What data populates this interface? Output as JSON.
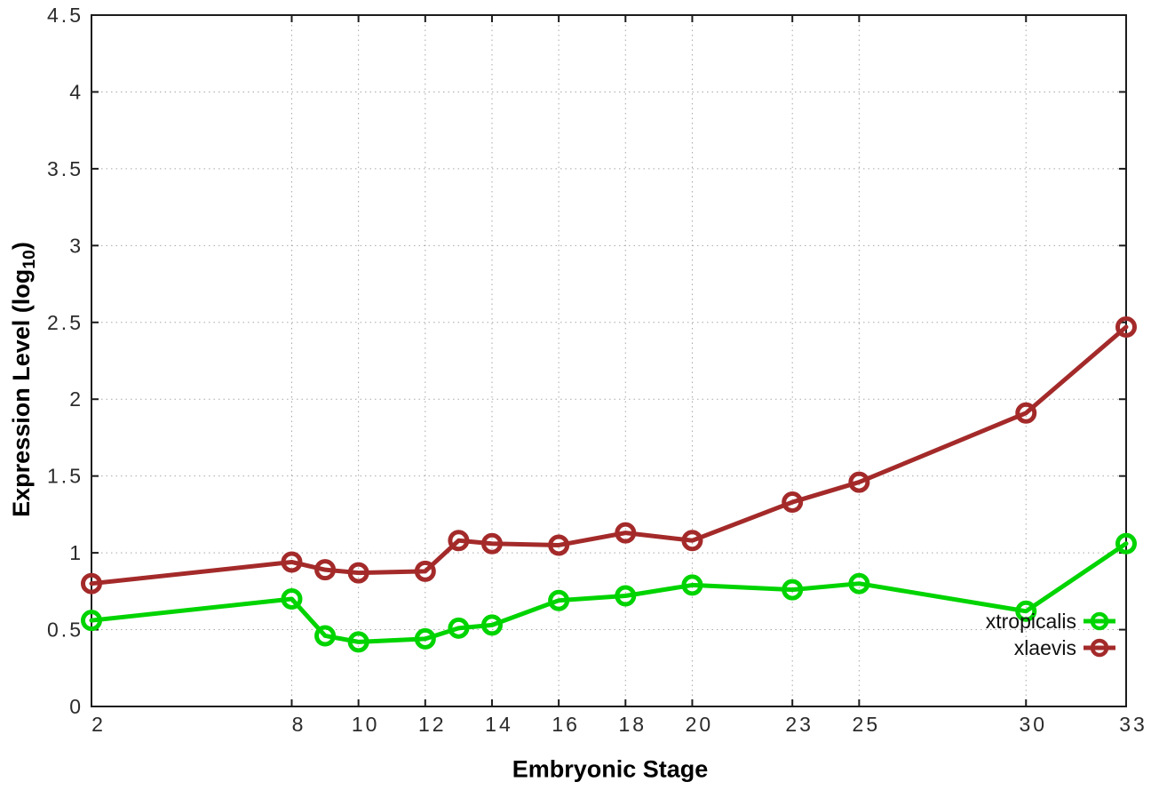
{
  "background": "#ffffff",
  "chart_data": {
    "type": "line",
    "title": "",
    "xlabel": "Embryonic Stage",
    "ylabel": {
      "prefix": "Expression Level (log",
      "sub": "10",
      "suffix": ")"
    },
    "xlim": [
      2,
      33
    ],
    "ylim": [
      0,
      4.5
    ],
    "grid": true,
    "legend_position": "inside-right-bottom",
    "x_ticks": [
      2,
      8,
      10,
      12,
      14,
      16,
      18,
      20,
      23,
      25,
      30,
      33
    ],
    "x_tick_labels": [
      "2",
      "8",
      "10",
      "12",
      "14",
      "16",
      "18",
      "20",
      "23",
      "25",
      "30",
      "33"
    ],
    "y_ticks": [
      0,
      0.5,
      1,
      1.5,
      2,
      2.5,
      3,
      3.5,
      4,
      4.5
    ],
    "y_tick_labels": [
      "0",
      "0.5",
      "1",
      "1.5",
      "2",
      "2.5",
      "3",
      "3.5",
      "4",
      "4.5"
    ],
    "x": [
      2,
      8,
      9,
      10,
      12,
      13,
      14,
      16,
      18,
      20,
      23,
      25,
      30,
      33
    ],
    "series": [
      {
        "name": "xtropicalis",
        "color": "#00d400",
        "values": [
          0.56,
          0.7,
          0.46,
          0.42,
          0.44,
          0.51,
          0.53,
          0.69,
          0.72,
          0.79,
          0.76,
          0.8,
          0.62,
          1.06
        ]
      },
      {
        "name": "xlaevis",
        "color": "#a42a2a",
        "values": [
          0.8,
          0.94,
          0.89,
          0.87,
          0.88,
          1.08,
          1.06,
          1.05,
          1.13,
          1.08,
          1.33,
          1.46,
          1.91,
          2.47
        ]
      }
    ],
    "style": {
      "grid_color": "#a8a8a8",
      "border_color": "#1c1c1c",
      "tick_text_color": "#2b2b2b"
    }
  }
}
